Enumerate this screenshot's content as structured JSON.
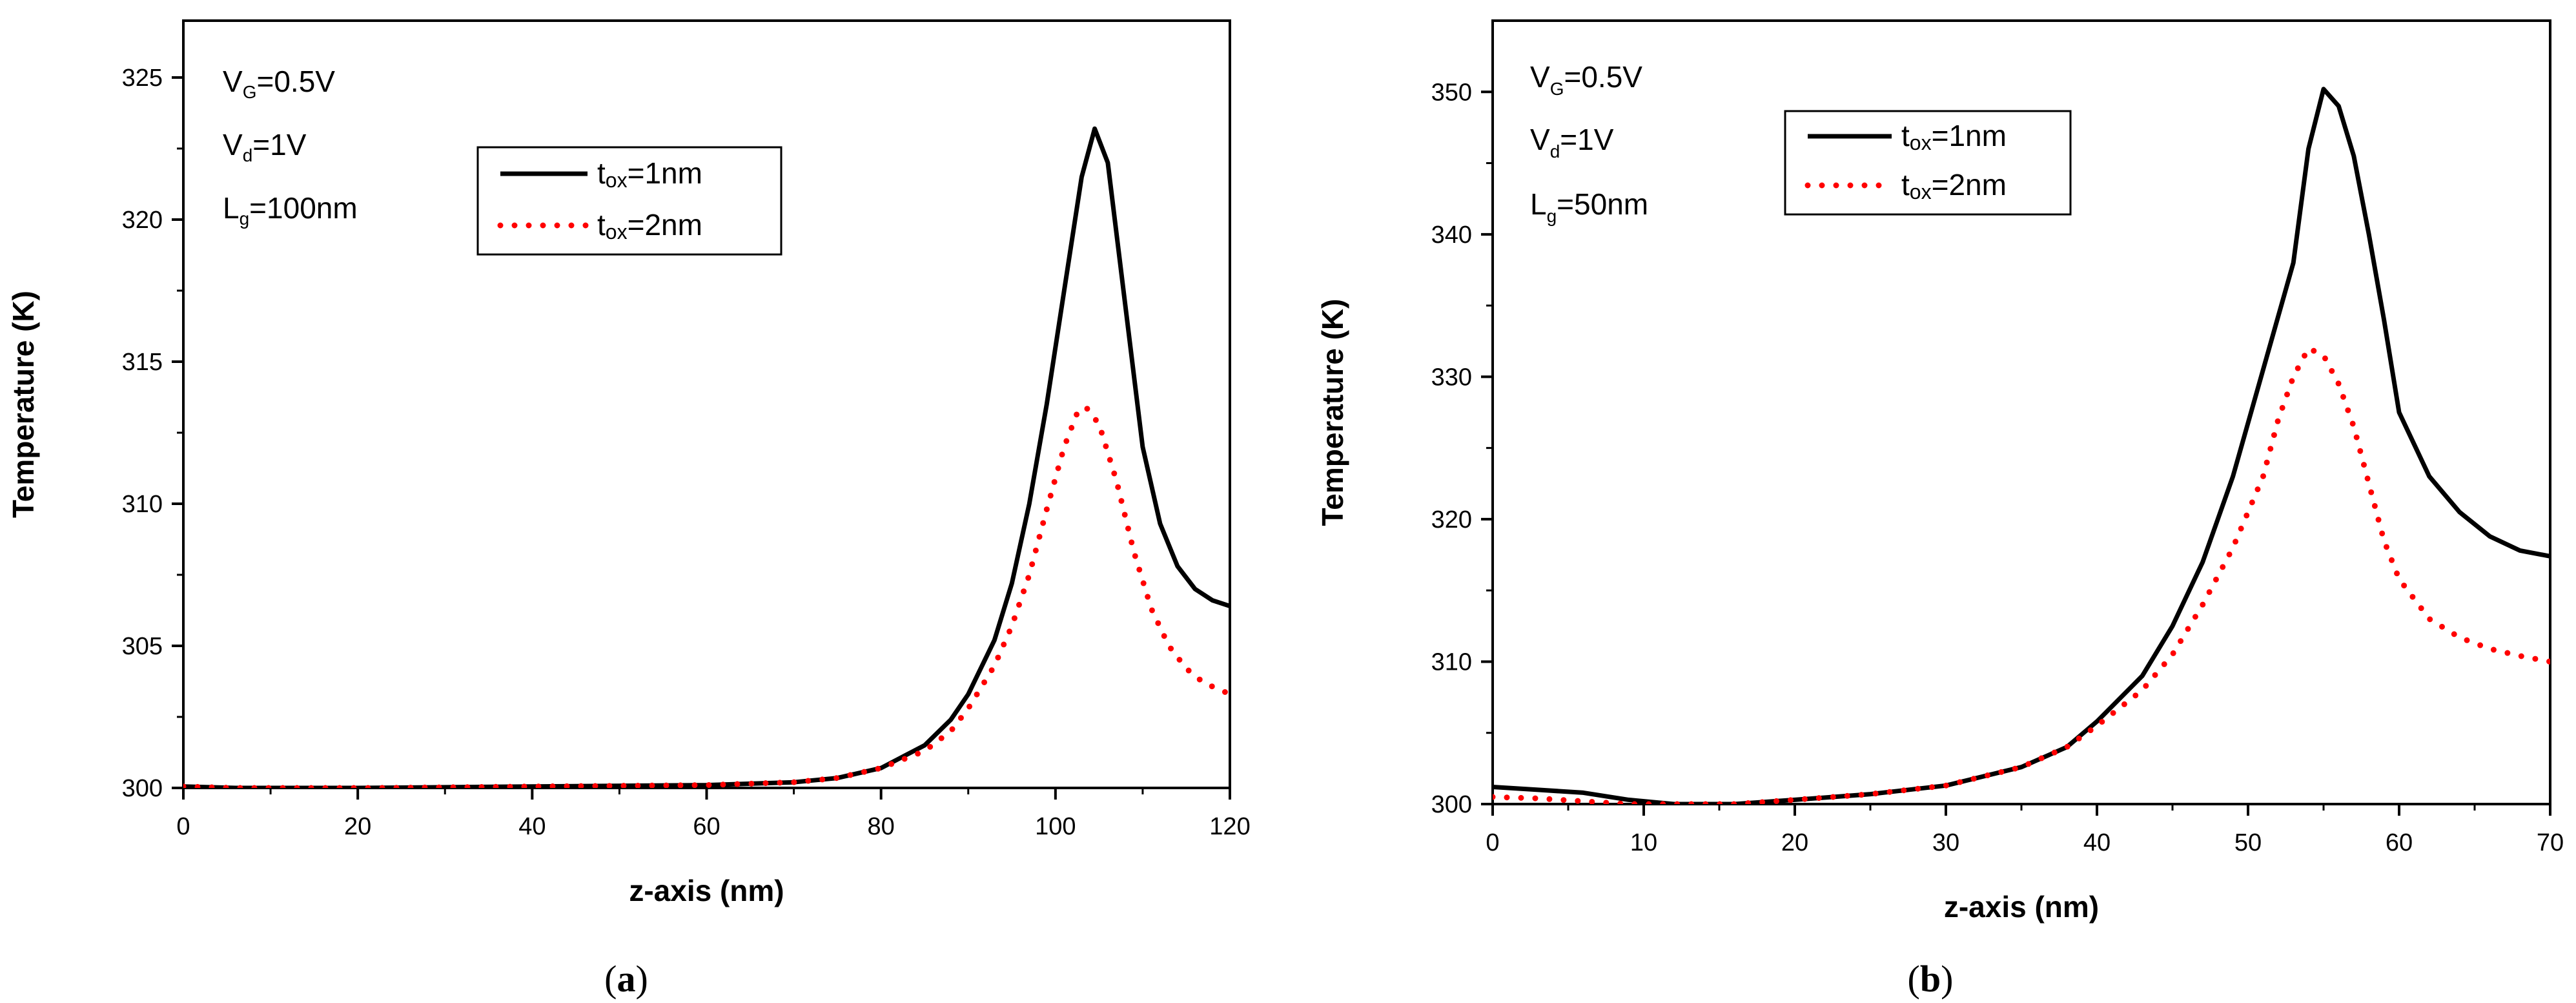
{
  "chart_data": [
    {
      "type": "line",
      "panel_label": "a",
      "xlabel": "z-axis (nm)",
      "ylabel": "Temperature (K)",
      "xlim": [
        0,
        120
      ],
      "ylim": [
        300,
        327
      ],
      "xticks": [
        0,
        20,
        40,
        60,
        80,
        100,
        120
      ],
      "yticks": [
        300,
        305,
        310,
        315,
        320,
        325
      ],
      "annotations": [
        {
          "main": "V",
          "sub": "G",
          "rest": "=0.5V"
        },
        {
          "main": "V",
          "sub": "d",
          "rest": "=1V"
        },
        {
          "main": "L",
          "sub": "g",
          "rest": "=100nm"
        }
      ],
      "series": [
        {
          "name": "tox=1nm",
          "legend_main": "t",
          "legend_sub": "ox",
          "legend_rest": "=1nm",
          "color": "#000000",
          "style": "solid",
          "x": [
            0,
            6,
            20,
            40,
            60,
            70,
            75,
            80,
            85,
            88,
            90,
            93,
            95,
            97,
            99,
            101,
            103,
            104.5,
            106,
            108,
            110,
            112,
            114,
            116,
            118,
            120
          ],
          "y": [
            300.05,
            300.0,
            300.0,
            300.05,
            300.1,
            300.2,
            300.35,
            300.7,
            301.5,
            302.4,
            303.3,
            305.2,
            307.2,
            310.0,
            313.5,
            317.5,
            321.5,
            323.2,
            322.0,
            317.0,
            312.0,
            309.3,
            307.8,
            307.0,
            306.6,
            306.4
          ]
        },
        {
          "name": "tox=2nm",
          "legend_main": "t",
          "legend_sub": "ox",
          "legend_rest": "=2nm",
          "color": "#ff0000",
          "style": "dotted",
          "x": [
            0,
            6,
            22,
            40,
            60,
            70,
            75,
            80,
            85,
            88,
            90,
            93,
            95,
            97,
            99,
            101,
            102.5,
            103.5,
            105,
            107,
            109,
            111,
            113,
            115,
            117,
            120
          ],
          "y": [
            300.05,
            300.0,
            300.0,
            300.05,
            300.1,
            300.2,
            300.35,
            300.7,
            301.3,
            302.0,
            302.8,
            304.3,
            305.7,
            307.5,
            309.8,
            312.0,
            313.2,
            313.4,
            312.8,
            310.8,
            308.3,
            306.3,
            305.0,
            304.2,
            303.7,
            303.3
          ]
        }
      ]
    },
    {
      "type": "line",
      "panel_label": "b",
      "xlabel": "z-axis (nm)",
      "ylabel": "Temperature (K)",
      "xlim": [
        0,
        70
      ],
      "ylim": [
        300,
        355
      ],
      "xticks": [
        0,
        10,
        20,
        30,
        40,
        50,
        60,
        70
      ],
      "yticks": [
        300,
        310,
        320,
        330,
        340,
        350
      ],
      "annotations": [
        {
          "main": "V",
          "sub": "G",
          "rest": "=0.5V"
        },
        {
          "main": "V",
          "sub": "d",
          "rest": "=1V"
        },
        {
          "main": "L",
          "sub": "g",
          "rest": "=50nm"
        }
      ],
      "series": [
        {
          "name": "tox=1nm",
          "legend_main": "t",
          "legend_sub": "ox",
          "legend_rest": "=1nm",
          "color": "#000000",
          "style": "solid",
          "x": [
            0,
            3,
            6,
            9,
            12,
            16,
            20,
            25,
            30,
            35,
            38,
            40,
            43,
            45,
            47,
            49,
            51,
            53,
            54,
            55,
            56,
            57,
            58,
            59,
            60,
            62,
            64,
            66,
            68,
            70
          ],
          "y": [
            301.2,
            301.0,
            300.8,
            300.3,
            300.0,
            300.0,
            300.3,
            300.7,
            301.3,
            302.6,
            304.0,
            305.8,
            309.0,
            312.5,
            317.0,
            323.0,
            330.5,
            338.0,
            346.0,
            350.2,
            349.0,
            345.5,
            340.0,
            334.0,
            327.5,
            323.0,
            320.5,
            318.8,
            317.8,
            317.4
          ]
        },
        {
          "name": "tox=2nm",
          "legend_main": "t",
          "legend_sub": "ox",
          "legend_rest": "=2nm",
          "color": "#ff0000",
          "style": "dotted",
          "x": [
            0,
            3,
            6,
            9,
            12,
            16,
            20,
            25,
            30,
            35,
            38,
            40,
            43,
            45,
            47,
            49,
            51,
            52,
            53,
            54,
            55,
            56,
            57,
            58,
            59,
            60,
            62,
            64,
            66,
            68,
            70
          ],
          "y": [
            300.5,
            300.4,
            300.2,
            300.0,
            300.0,
            300.0,
            300.3,
            300.7,
            301.3,
            302.6,
            304.0,
            305.5,
            308.0,
            310.5,
            314.0,
            318.0,
            323.0,
            327.0,
            330.0,
            332.0,
            331.5,
            329.5,
            326.5,
            322.5,
            318.5,
            315.8,
            313.0,
            311.7,
            310.9,
            310.4,
            310.0
          ]
        }
      ]
    }
  ]
}
